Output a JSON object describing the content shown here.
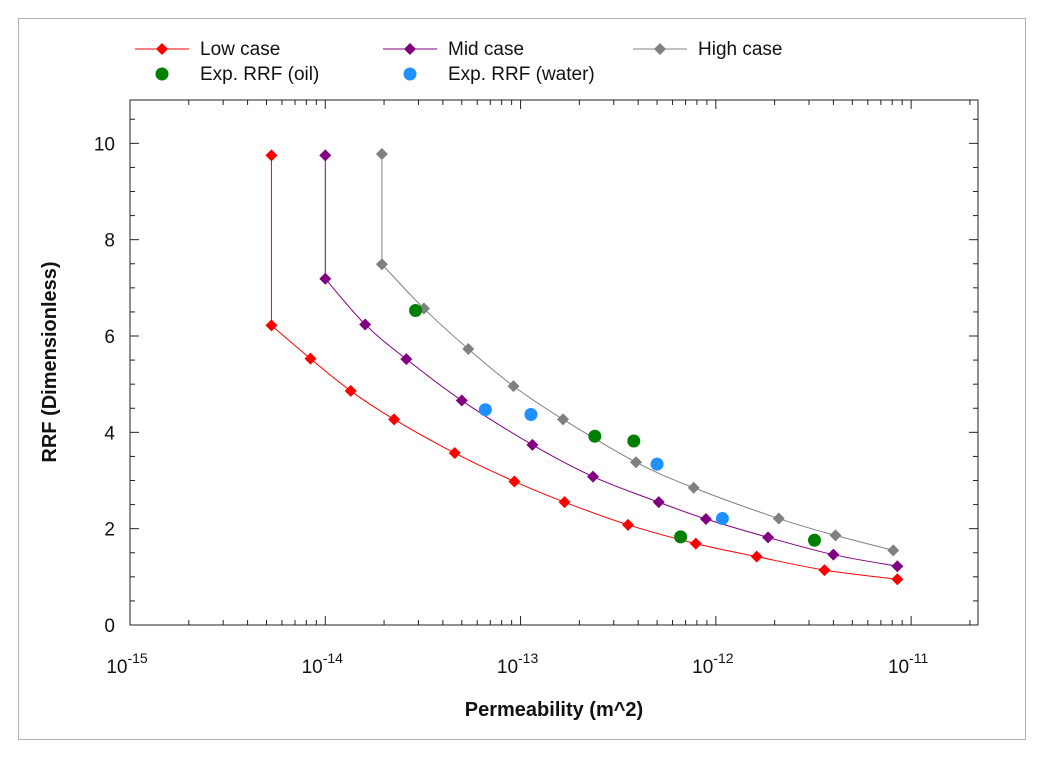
{
  "chart_data": {
    "type": "scatter",
    "xlabel": "Permeability (m^2)",
    "ylabel": "RRF (Dimensionless)",
    "xscale": "log",
    "xlim": [
      1e-15,
      2.2e-11
    ],
    "ylim": [
      0,
      10.9
    ],
    "x_tick_labels": [
      {
        "value": 1e-15,
        "base": "10",
        "exp": "-15"
      },
      {
        "value": 1e-14,
        "base": "10",
        "exp": "-14"
      },
      {
        "value": 1e-13,
        "base": "10",
        "exp": "-13"
      },
      {
        "value": 1e-12,
        "base": "10",
        "exp": "-12"
      },
      {
        "value": 1e-11,
        "base": "10",
        "exp": "-11"
      }
    ],
    "y_ticks": [
      0,
      2,
      4,
      6,
      8,
      10
    ],
    "y_tick_labels": [
      "0",
      "2",
      "4",
      "6",
      "8",
      "10"
    ],
    "grid": false,
    "legend_position": "top",
    "series": [
      {
        "name": "Low case",
        "kind": "line-diamond",
        "color": "#ff0000",
        "points": [
          [
            5.3e-15,
            9.75
          ],
          [
            5.3e-15,
            6.22
          ],
          [
            8.4e-15,
            5.53
          ],
          [
            1.35e-14,
            4.86
          ],
          [
            2.25e-14,
            4.27
          ],
          [
            4.6e-14,
            3.57
          ],
          [
            9.3e-14,
            2.98
          ],
          [
            1.68e-13,
            2.55
          ],
          [
            3.55e-13,
            2.08
          ],
          [
            7.9e-13,
            1.69
          ],
          [
            1.62e-12,
            1.42
          ],
          [
            3.6e-12,
            1.14
          ],
          [
            8.5e-12,
            0.95
          ]
        ]
      },
      {
        "name": "Mid case",
        "kind": "line-diamond",
        "color": "#800080",
        "points": [
          [
            1e-14,
            9.75
          ],
          [
            1e-14,
            7.19
          ],
          [
            1.6e-14,
            6.24
          ],
          [
            2.6e-14,
            5.52
          ],
          [
            5e-14,
            4.66
          ],
          [
            1.15e-13,
            3.74
          ],
          [
            2.35e-13,
            3.08
          ],
          [
            5.1e-13,
            2.55
          ],
          [
            8.9e-13,
            2.2
          ],
          [
            1.85e-12,
            1.82
          ],
          [
            4e-12,
            1.46
          ],
          [
            8.5e-12,
            1.22
          ]
        ]
      },
      {
        "name": "High case",
        "kind": "line-diamond",
        "color": "#808080",
        "points": [
          [
            1.95e-14,
            9.78
          ],
          [
            1.95e-14,
            7.49
          ],
          [
            3.2e-14,
            6.57
          ],
          [
            5.4e-14,
            5.73
          ],
          [
            9.2e-14,
            4.96
          ],
          [
            1.65e-13,
            4.27
          ],
          [
            3.9e-13,
            3.38
          ],
          [
            7.7e-13,
            2.85
          ],
          [
            2.1e-12,
            2.21
          ],
          [
            4.1e-12,
            1.86
          ],
          [
            8.1e-12,
            1.55
          ]
        ]
      },
      {
        "name": "Exp. RRF (oil)",
        "kind": "dot",
        "color": "#008000",
        "points": [
          [
            2.9e-14,
            6.53
          ],
          [
            2.4e-13,
            3.92
          ],
          [
            3.8e-13,
            3.82
          ],
          [
            6.6e-13,
            1.83
          ],
          [
            3.2e-12,
            1.76
          ]
        ]
      },
      {
        "name": "Exp. RRF (water)",
        "kind": "dot",
        "color": "#1e90ff",
        "points": [
          [
            6.6e-14,
            4.47
          ],
          [
            1.13e-13,
            4.37
          ],
          [
            5e-13,
            3.34
          ],
          [
            1.08e-12,
            2.21
          ]
        ]
      }
    ]
  }
}
